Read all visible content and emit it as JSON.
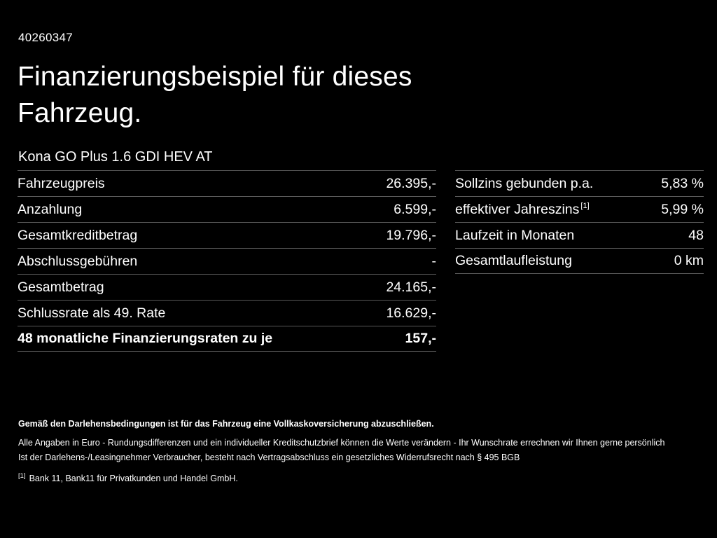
{
  "page": {
    "id_number": "40260347",
    "title_line1": "Finanzierungsbeispiel für dieses",
    "title_line2": "Fahrzeug.",
    "vehicle_name": "Kona GO Plus 1.6 GDI HEV AT"
  },
  "colors": {
    "background": "#000000",
    "text": "#ffffff",
    "divider": "#595959"
  },
  "left_table": {
    "rows": [
      {
        "label": "Fahrzeugpreis",
        "value": "26.395,-"
      },
      {
        "label": "Anzahlung",
        "value": "6.599,-"
      },
      {
        "label": "Gesamtkreditbetrag",
        "value": "19.796,-"
      },
      {
        "label": "Abschlussgebühren",
        "value": "-"
      },
      {
        "label": "Gesamtbetrag",
        "value": "24.165,-"
      },
      {
        "label": "Schlussrate als 49. Rate",
        "value": "16.629,-"
      },
      {
        "label": "48 monatliche Finanzierungsraten zu je",
        "value": "157,-"
      }
    ]
  },
  "right_table": {
    "rows": [
      {
        "label": "Sollzins gebunden p.a.",
        "sup": "",
        "value": "5,83 %"
      },
      {
        "label": "effektiver Jahreszins",
        "sup": "[1]",
        "value": "5,99 %"
      },
      {
        "label": "Laufzeit in Monaten",
        "sup": "",
        "value": "48"
      },
      {
        "label": "Gesamtlaufleistung",
        "sup": "",
        "value": "0 km"
      }
    ]
  },
  "footer": {
    "bold_note": "Gemäß den Darlehensbedingungen ist für das Fahrzeug eine Vollkaskoversicherung abzuschließen.",
    "note1": "Alle Angaben in Euro - Rundungsdifferenzen und ein individueller Kreditschutzbrief können die Werte verändern - Ihr Wunschrate errechnen wir Ihnen gerne persönlich",
    "note2": "Ist der Darlehens-/Leasingnehmer Verbraucher, besteht nach Vertragsabschluss ein gesetzliches Widerrufsrecht nach § 495 BGB",
    "footnote_marker": "[1]",
    "footnote_text": "Bank 11, Bank11 für Privatkunden und Handel GmbH."
  }
}
